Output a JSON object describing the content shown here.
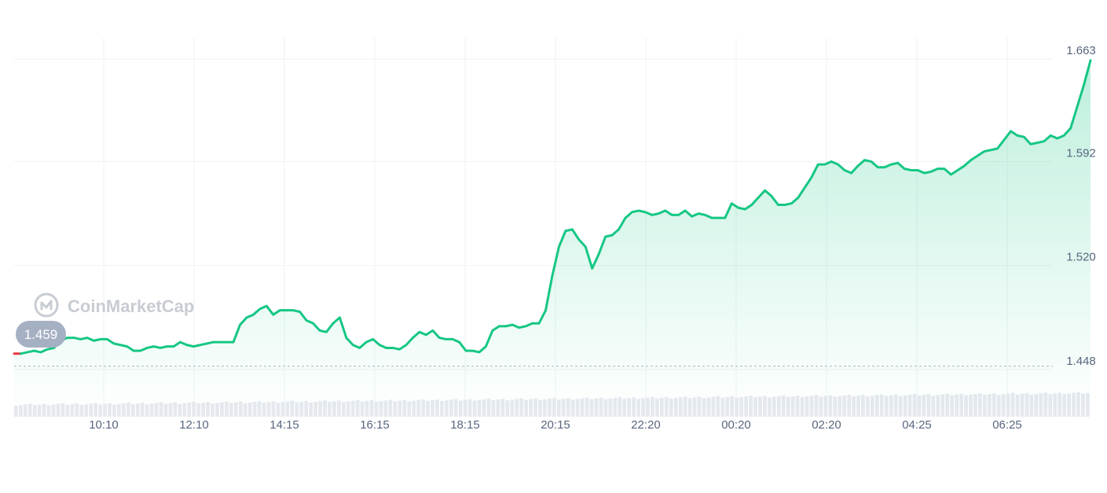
{
  "watermark": {
    "brand": "CoinMarketCap",
    "icon": "coinmarketcap-logo-icon"
  },
  "colors": {
    "line": "#16c784",
    "line_start": "#ea3943",
    "area_top": "#16c784",
    "grid": "#eff2f5",
    "badge": "#a6b0c3",
    "ref_line": "#a6b0c3",
    "volume": "#e6e9ef",
    "axis_text": "#58667e"
  },
  "chart_data": {
    "type": "area",
    "title": "",
    "xlabel": "",
    "ylabel": "",
    "x_ticks": [
      "10:10",
      "12:10",
      "14:15",
      "16:15",
      "18:15",
      "20:15",
      "22:20",
      "00:20",
      "02:20",
      "04:25",
      "06:25"
    ],
    "y_ticks": [
      "1.663",
      "1.592",
      "1.520",
      "1.448"
    ],
    "ylim": [
      1.436,
      1.678
    ],
    "grid": true,
    "reference_value": 1.459,
    "reference_label": "1.459",
    "start_time": "08:30",
    "end_time": "08:25",
    "series": [
      {
        "values": [
          1.459,
          1.459,
          1.46,
          1.461,
          1.46,
          1.462,
          1.463,
          1.468,
          1.47,
          1.47,
          1.469,
          1.47,
          1.468,
          1.469,
          1.469,
          1.466,
          1.465,
          1.464,
          1.461,
          1.461,
          1.463,
          1.464,
          1.463,
          1.464,
          1.464,
          1.467,
          1.465,
          1.464,
          1.465,
          1.466,
          1.467,
          1.467,
          1.467,
          1.467,
          1.479,
          1.484,
          1.486,
          1.49,
          1.492,
          1.486,
          1.489,
          1.489,
          1.489,
          1.488,
          1.482,
          1.48,
          1.475,
          1.474,
          1.48,
          1.484,
          1.47,
          1.465,
          1.463,
          1.467,
          1.469,
          1.465,
          1.463,
          1.463,
          1.462,
          1.465,
          1.47,
          1.474,
          1.472,
          1.475,
          1.47,
          1.469,
          1.469,
          1.467,
          1.461,
          1.461,
          1.46,
          1.464,
          1.475,
          1.478,
          1.478,
          1.479,
          1.477,
          1.478,
          1.48,
          1.48,
          1.489,
          1.513,
          1.533,
          1.544,
          1.545,
          1.538,
          1.533,
          1.518,
          1.528,
          1.54,
          1.541,
          1.545,
          1.553,
          1.557,
          1.558,
          1.557,
          1.555,
          1.556,
          1.558,
          1.555,
          1.555,
          1.558,
          1.554,
          1.556,
          1.555,
          1.553,
          1.553,
          1.553,
          1.563,
          1.56,
          1.559,
          1.562,
          1.567,
          1.572,
          1.568,
          1.562,
          1.562,
          1.563,
          1.567,
          1.574,
          1.581,
          1.59,
          1.59,
          1.592,
          1.59,
          1.586,
          1.584,
          1.589,
          1.593,
          1.592,
          1.588,
          1.588,
          1.59,
          1.591,
          1.587,
          1.586,
          1.586,
          1.584,
          1.585,
          1.587,
          1.587,
          1.583,
          1.586,
          1.589,
          1.593,
          1.596,
          1.599,
          1.6,
          1.601,
          1.607,
          1.613,
          1.61,
          1.609,
          1.604,
          1.605,
          1.606,
          1.61,
          1.608,
          1.61,
          1.615,
          1.63,
          1.645,
          1.662
        ]
      }
    ]
  }
}
